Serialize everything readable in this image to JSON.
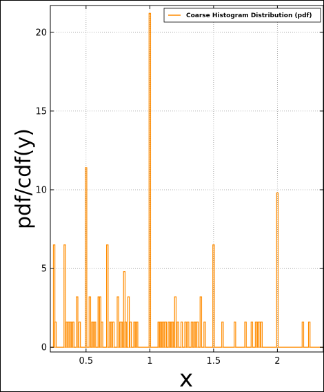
{
  "chart_data": {
    "type": "bar",
    "xlabel": "x",
    "ylabel": "pdf/cdf(y)",
    "xlim": [
      0.22,
      2.36
    ],
    "ylim": [
      -0.3,
      21.7
    ],
    "xticks": [
      "0.5",
      "1",
      "1.5",
      "2"
    ],
    "xtick_values": [
      0.5,
      1,
      1.5,
      2
    ],
    "yticks": [
      "0",
      "5",
      "10",
      "15",
      "20"
    ],
    "ytick_values": [
      0,
      5,
      10,
      15,
      20
    ],
    "grid": true,
    "legend_position": "top-right",
    "color": "#ff8c00",
    "series": [
      {
        "name": "Coarse Histogram Distribution (pdf)",
        "x": [
          0.25,
          0.26,
          0.333,
          0.35,
          0.36,
          0.375,
          0.39,
          0.4,
          0.43,
          0.45,
          0.5,
          0.53,
          0.55,
          0.56,
          0.57,
          0.6,
          0.61,
          0.625,
          0.667,
          0.69,
          0.7,
          0.714,
          0.75,
          0.77,
          0.78,
          0.8,
          0.81,
          0.833,
          0.85,
          0.88,
          0.89,
          0.9,
          1.0,
          1.07,
          1.08,
          1.09,
          1.1,
          1.11,
          1.125,
          1.15,
          1.16,
          1.17,
          1.18,
          1.2,
          1.22,
          1.25,
          1.28,
          1.3,
          1.33,
          1.35,
          1.36,
          1.375,
          1.4,
          1.43,
          1.5,
          1.57,
          1.667,
          1.75,
          1.8,
          1.833,
          1.85,
          1.86,
          1.875,
          2.0,
          2.2,
          2.25
        ],
        "values": [
          6.5,
          1.6,
          6.5,
          1.6,
          1.6,
          1.6,
          1.6,
          1.6,
          3.2,
          1.6,
          11.4,
          3.2,
          1.6,
          1.6,
          1.6,
          3.2,
          3.2,
          1.6,
          6.5,
          1.6,
          1.6,
          1.6,
          3.2,
          1.6,
          1.6,
          4.8,
          1.6,
          3.2,
          1.6,
          1.6,
          1.6,
          1.6,
          21.2,
          1.6,
          1.6,
          1.6,
          1.6,
          1.6,
          1.6,
          1.6,
          1.6,
          1.6,
          1.6,
          3.2,
          1.6,
          1.6,
          1.6,
          1.6,
          1.6,
          1.6,
          1.6,
          1.6,
          3.2,
          1.6,
          6.5,
          1.6,
          1.6,
          1.6,
          1.6,
          1.6,
          1.6,
          1.6,
          1.6,
          9.8,
          1.6,
          1.6
        ]
      }
    ]
  }
}
